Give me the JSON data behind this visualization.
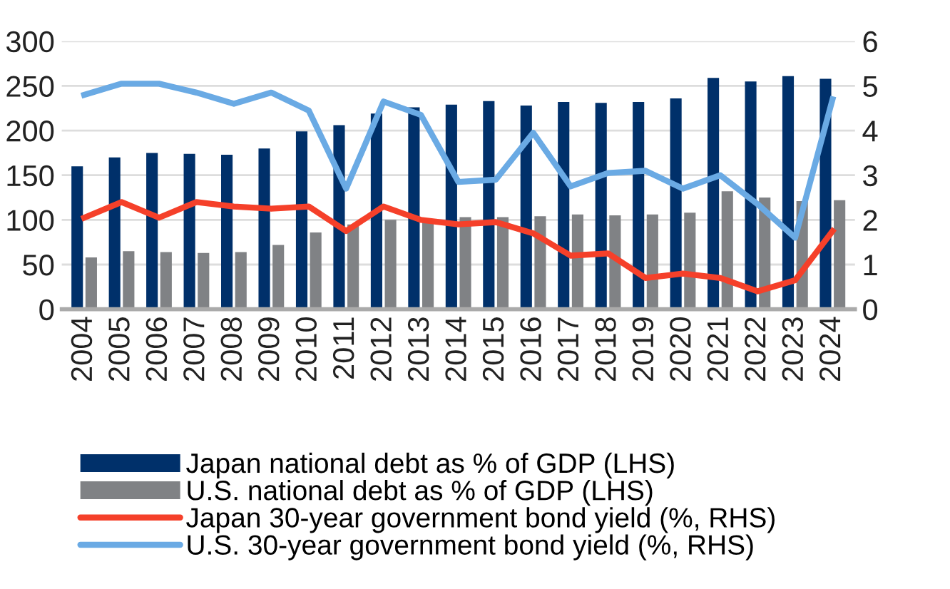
{
  "chart_data": {
    "type": "bar",
    "categories": [
      "2004",
      "2005",
      "2006",
      "2007",
      "2008",
      "2009",
      "2010",
      "2011",
      "2012",
      "2013",
      "2014",
      "2015",
      "2016",
      "2017",
      "2018",
      "2019",
      "2020",
      "2021",
      "2022",
      "2023",
      "2024"
    ],
    "series": [
      {
        "name": "Japan national debt as % of GDP (LHS)",
        "color": "#00306a",
        "values": [
          160,
          170,
          175,
          174,
          173,
          180,
          199,
          206,
          219,
          226,
          229,
          233,
          228,
          232,
          231,
          232,
          236,
          259,
          255,
          261,
          258
        ]
      },
      {
        "name": "U.S. national debt as % of GDP (LHS)",
        "color": "#808285",
        "values": [
          58,
          65,
          64,
          63,
          64,
          72,
          86,
          95,
          100,
          100,
          103,
          103,
          104,
          106,
          105,
          106,
          108,
          132,
          125,
          121,
          122
        ]
      },
      {
        "name": "Japan 30-year government bond yield (%, RHS)",
        "type": "line",
        "axis": "y2",
        "color": "#f5402a",
        "values": [
          2.05,
          2.4,
          2.05,
          2.4,
          2.3,
          2.25,
          2.3,
          1.75,
          2.3,
          2.0,
          1.9,
          1.95,
          1.7,
          1.2,
          1.25,
          0.7,
          0.8,
          0.7,
          0.4,
          0.65,
          1.75
        ]
      },
      {
        "name": "U.S. 30-year government bond yield (%, RHS)",
        "type": "line",
        "axis": "y2",
        "color": "#6aaae4",
        "values": [
          4.8,
          5.05,
          5.05,
          4.85,
          4.6,
          4.85,
          4.45,
          2.7,
          4.65,
          4.35,
          2.85,
          2.9,
          3.95,
          2.75,
          3.05,
          3.1,
          2.7,
          3.0,
          2.35,
          1.6,
          4.7
        ]
      }
    ],
    "ylim": [
      0,
      300
    ],
    "yticks": [
      0,
      50,
      100,
      150,
      200,
      250,
      300
    ],
    "y2lim": [
      0,
      6
    ],
    "y2ticks": [
      0,
      1,
      2,
      3,
      4,
      5,
      6
    ],
    "grid": "y",
    "legend": "bottom"
  }
}
